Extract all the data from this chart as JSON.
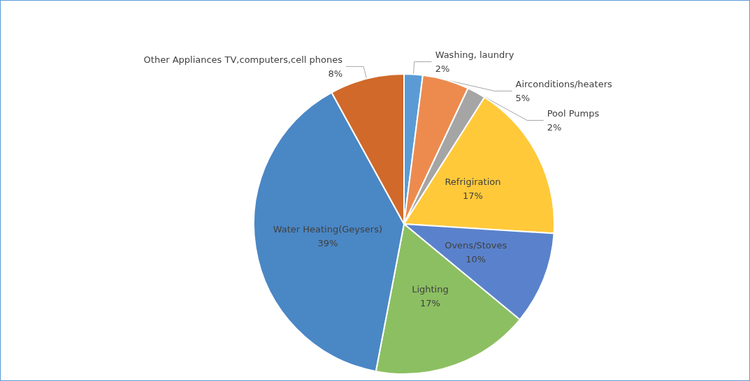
{
  "chart_data": {
    "type": "pie",
    "categories": [
      "Washing, laundry",
      "Airconditions/heaters",
      "Pool Pumps",
      "Refrigiration",
      "Ovens/Stoves",
      "Lighting",
      "Water Heating(Geysers)",
      "Other Appliances TV,computers,cell phones"
    ],
    "values": [
      2,
      5,
      2,
      17,
      10,
      17,
      39,
      8
    ],
    "value_labels": [
      "2%",
      "5%",
      "2%",
      "17%",
      "10%",
      "17%",
      "39%",
      "8%"
    ],
    "colors": [
      "#5b9bd5",
      "#ed8b4f",
      "#a5a5a5",
      "#ffc93a",
      "#5a82cc",
      "#8cbf62",
      "#4a87c5",
      "#d0692a"
    ],
    "legend": false
  }
}
